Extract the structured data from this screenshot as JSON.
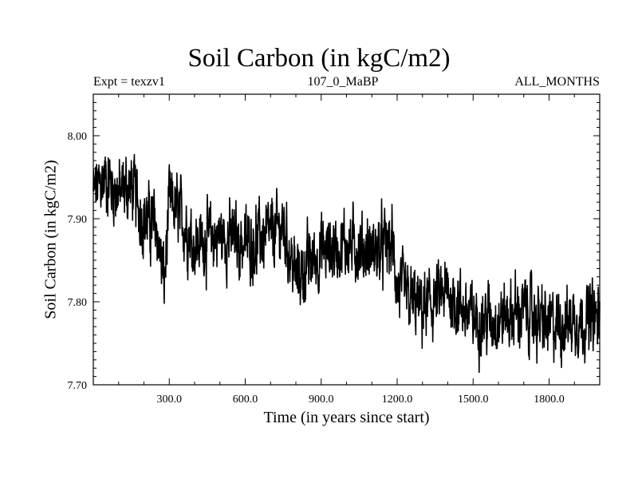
{
  "chart_data": {
    "type": "line",
    "title": "Soil Carbon (in kgC/m2)",
    "subtitle_left": "Expt = texzv1",
    "subtitle_center": "107_0_MaBP",
    "subtitle_right": "ALL_MONTHS",
    "xlabel": "Time (in years since start)",
    "ylabel": "Soil Carbon (in kgC/m2)",
    "xlim": [
      0,
      2000
    ],
    "ylim": [
      7.7,
      8.05
    ],
    "xticks": [
      300,
      600,
      900,
      1200,
      1500,
      1800
    ],
    "xtick_labels": [
      "300.0",
      "600.0",
      "900.0",
      "1200.0",
      "1500.0",
      "1800.0"
    ],
    "yticks": [
      7.7,
      7.8,
      7.9,
      8.0
    ],
    "ytick_labels": [
      "7.70",
      "7.80",
      "7.90",
      "8.00"
    ],
    "line_color": "#000000",
    "series": [
      {
        "name": "Soil Carbon",
        "description": "Noisy annual time series; approximate trend anchors (year, value)",
        "trend_x": [
          0,
          50,
          100,
          150,
          200,
          250,
          280,
          300,
          350,
          400,
          500,
          600,
          700,
          750,
          800,
          900,
          1000,
          1100,
          1180,
          1200,
          1250,
          1300,
          1400,
          1500,
          1600,
          1700,
          1800,
          1900,
          2000
        ],
        "trend_y": [
          7.93,
          7.95,
          7.93,
          7.94,
          7.9,
          7.89,
          7.82,
          7.92,
          7.9,
          7.87,
          7.88,
          7.87,
          7.88,
          7.89,
          7.83,
          7.86,
          7.87,
          7.86,
          7.87,
          7.82,
          7.8,
          7.79,
          7.81,
          7.78,
          7.78,
          7.79,
          7.77,
          7.78,
          7.78
        ],
        "noise_amplitude": 0.035,
        "sample_count": 2000
      }
    ]
  }
}
